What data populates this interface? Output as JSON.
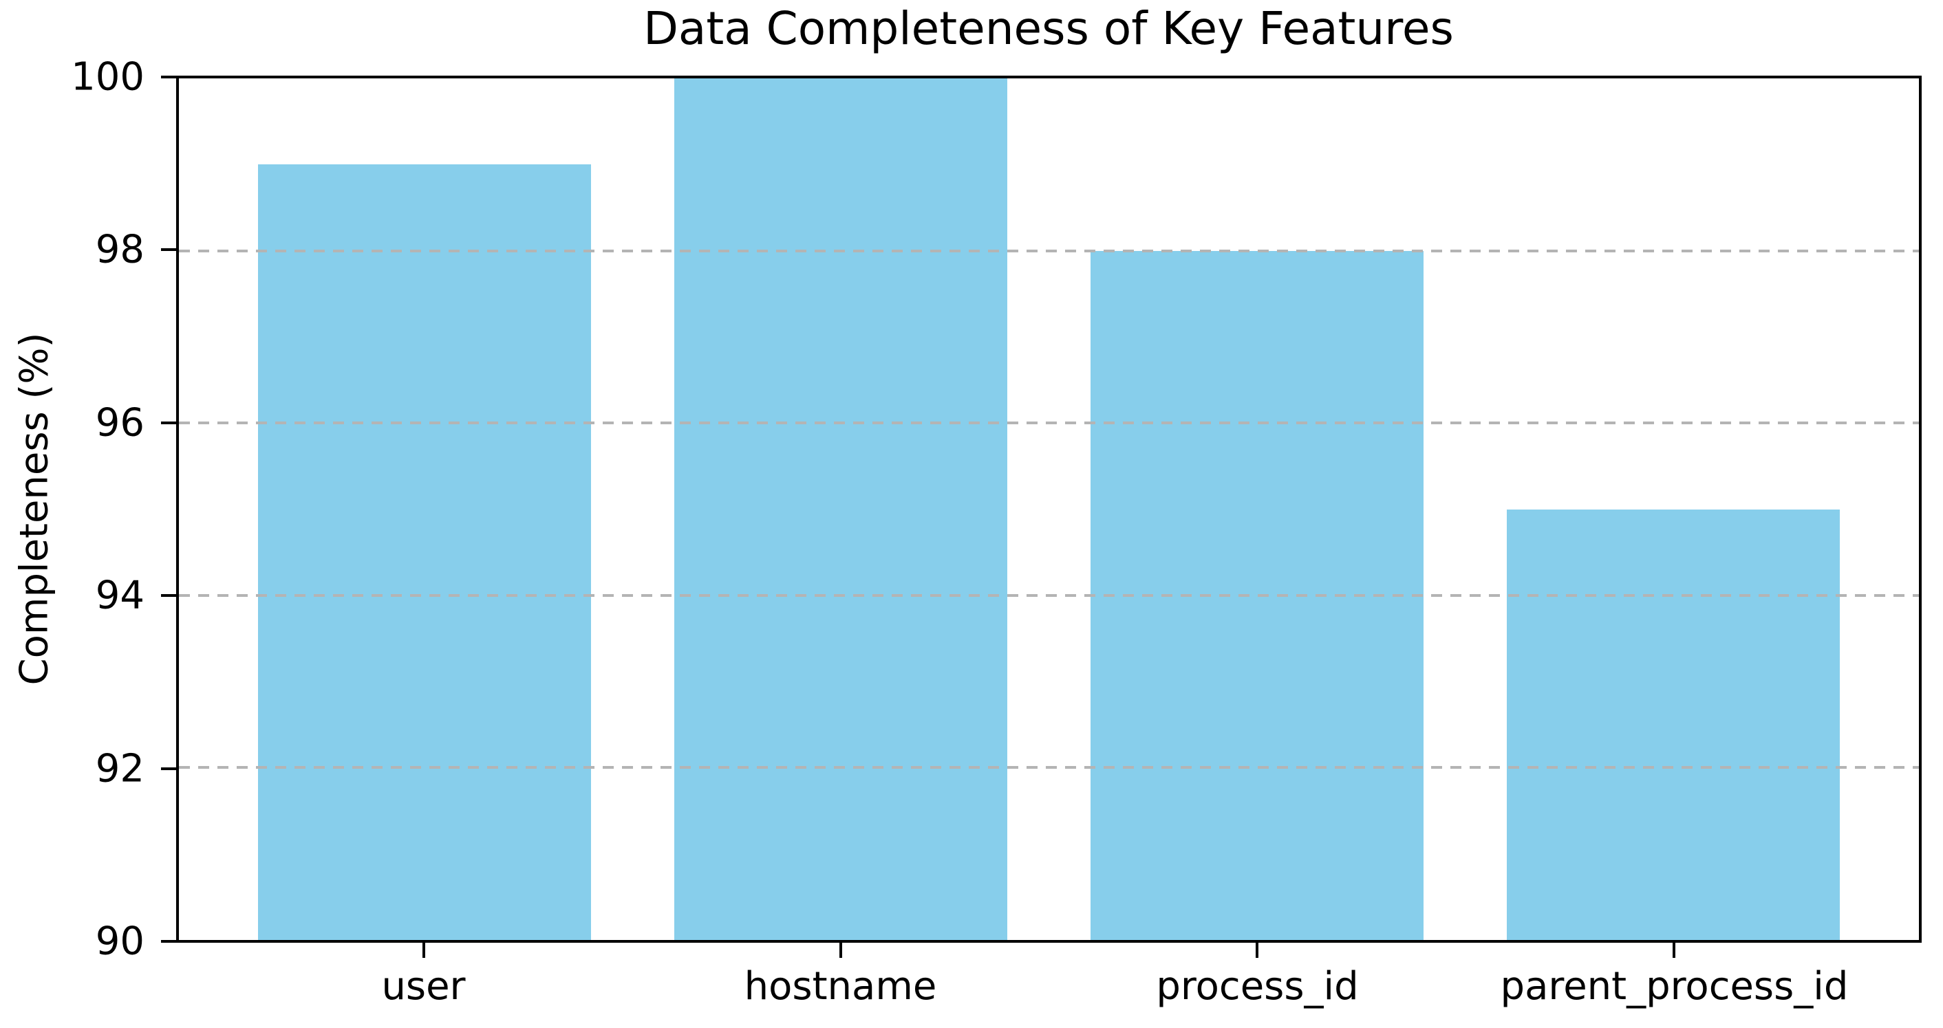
{
  "figure": {
    "background": "#ffffff",
    "text_color": "#000000",
    "spine_color": "#000000"
  },
  "chart_data": {
    "type": "bar",
    "title": "Data Completeness of Key Features",
    "xlabel": "",
    "ylabel": "Completeness (%)",
    "categories": [
      "user",
      "hostname",
      "process_id",
      "parent_process_id"
    ],
    "values": [
      99,
      100,
      98,
      95
    ],
    "ylim": [
      90,
      100
    ],
    "yticks": [
      90,
      92,
      94,
      96,
      98,
      100
    ],
    "bar_color": "#87CEEB",
    "grid": {
      "axis": "y",
      "style": "dashed",
      "color": "#b4b4b4",
      "above_bars": true
    },
    "legend": "none"
  }
}
